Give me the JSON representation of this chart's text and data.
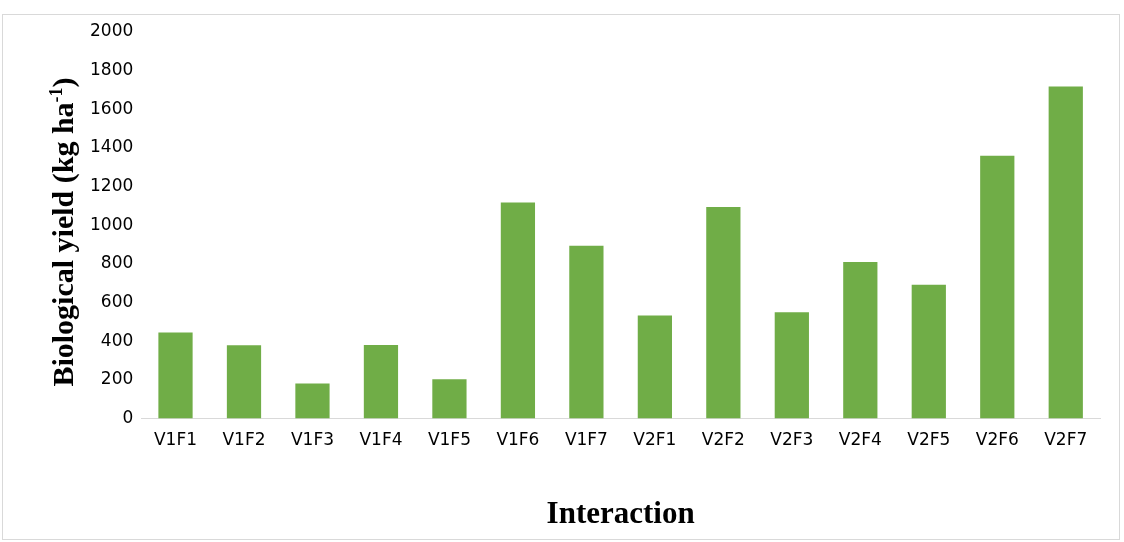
{
  "chart_data": {
    "type": "bar",
    "xlabel": "Interaction",
    "ylabel": "Biological yield (kg ha$^{-1}$)",
    "categories": [
      "V1F1",
      "V1F2",
      "V1F3",
      "V1F4",
      "V1F5",
      "V1F6",
      "V1F7",
      "V2F1",
      "V2F2",
      "V2F3",
      "V2F4",
      "V2F5",
      "V2F6",
      "V2F7"
    ],
    "values": [
      445,
      378,
      181,
      380,
      202,
      1117,
      894,
      532,
      1094,
      550,
      809,
      692,
      1360,
      1718
    ],
    "color": "#70ad47",
    "ylim": [
      0,
      2000
    ],
    "yticks": [
      0,
      200,
      400,
      600,
      800,
      1000,
      1200,
      1400,
      1600,
      1800,
      2000
    ],
    "grid": false,
    "legend": false
  }
}
